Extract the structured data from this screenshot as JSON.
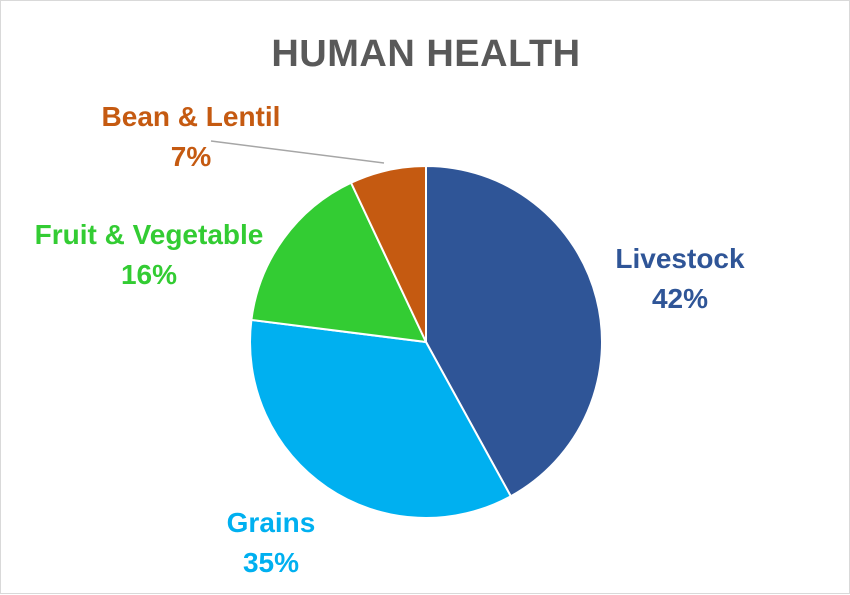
{
  "chart_data": {
    "type": "pie",
    "title": "HUMAN HEALTH",
    "slices": [
      {
        "name": "Livestock",
        "value": 42,
        "label": "42%",
        "color": "#2f5597"
      },
      {
        "name": "Grains",
        "value": 35,
        "label": "35%",
        "color": "#00b0f0"
      },
      {
        "name": "Fruit & Vegetable",
        "value": 16,
        "label": "16%",
        "color": "#33cc33"
      },
      {
        "name": "Bean & Lentil",
        "value": 7,
        "label": "7%",
        "color": "#c55a11"
      }
    ],
    "legend": "none",
    "data_labels": "outside"
  }
}
